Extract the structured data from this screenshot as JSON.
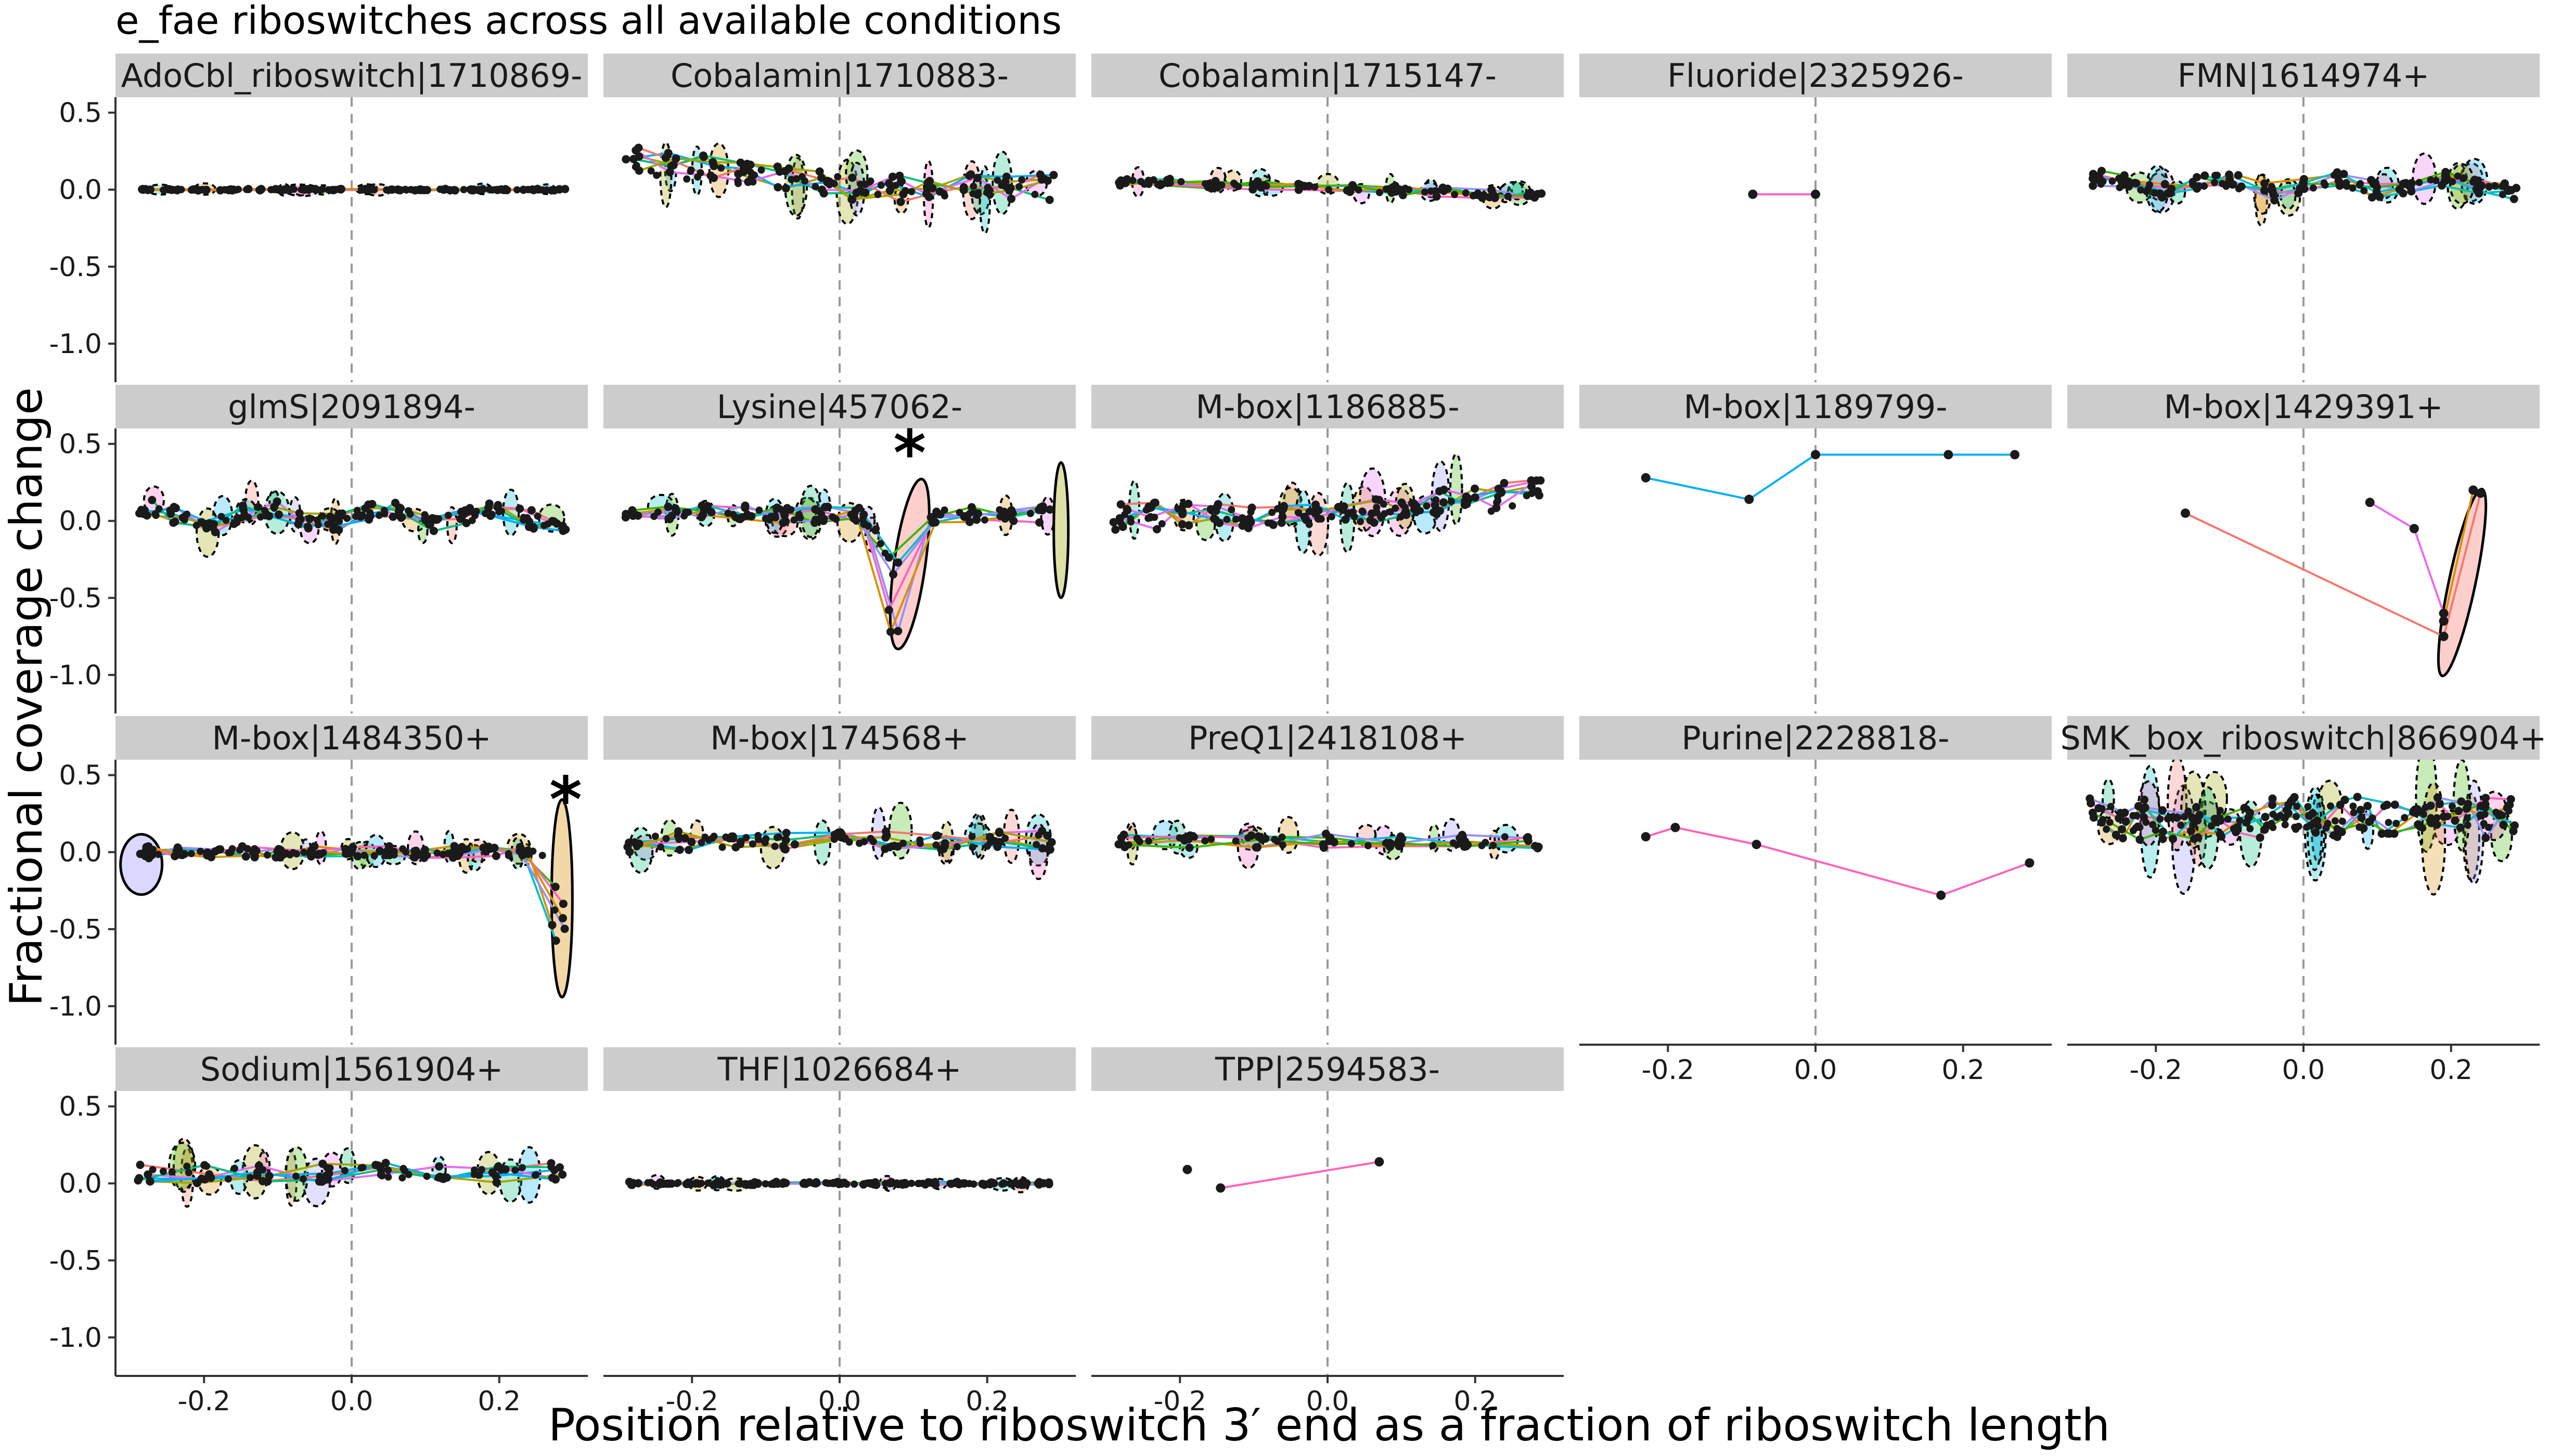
{
  "chart_data": {
    "type": "scatter",
    "title": "e_fae riboswitches across all available conditions",
    "xlabel": "Position relative to riboswitch 3′ end as a fraction of riboswitch length",
    "ylabel": "Fractional coverage change",
    "xlim": [
      -0.32,
      0.32
    ],
    "ylim": [
      -1.25,
      0.6
    ],
    "x_ticks": [
      "-0.2",
      "0.0",
      "0.2"
    ],
    "x_tick_values": [
      -0.2,
      0.0,
      0.2
    ],
    "y_ticks": [
      "0.5",
      "0.0",
      "-0.5",
      "-1.0"
    ],
    "y_tick_values": [
      0.5,
      0.0,
      -0.5,
      -1.0
    ],
    "reference_line_x": 0.0,
    "grid": false,
    "legend": "none",
    "facet_layout": {
      "rows": 4,
      "cols": 5
    },
    "palette": [
      "#F8766D",
      "#D89000",
      "#A3A500",
      "#39B600",
      "#00BF7D",
      "#00BFC4",
      "#00B0F6",
      "#9590FF",
      "#E76BF3",
      "#FF62BC"
    ],
    "panels": [
      {
        "label": "AdoCbl_riboswitch|1710869-",
        "pattern": "flat",
        "amplitude": 0.01,
        "density": 95,
        "seed": 1
      },
      {
        "label": "Cobalamin|1710883-",
        "pattern": "decay",
        "amplitude": 0.18,
        "density": 70,
        "seed": 2
      },
      {
        "label": "Cobalamin|1715147-",
        "pattern": "slope",
        "amplitude": 0.06,
        "density": 60,
        "seed": 3
      },
      {
        "label": "Fluoride|2325926-",
        "pattern": "explicit",
        "series": [
          {
            "color": "#FF62BC",
            "points": [
              [
                -0.085,
                -0.03
              ],
              [
                0.0,
                -0.03
              ]
            ]
          }
        ]
      },
      {
        "label": "FMN|1614974+",
        "pattern": "bumpy",
        "amplitude": 0.12,
        "density": 75,
        "seed": 5
      },
      {
        "label": "glmS|2091894-",
        "pattern": "bumpy",
        "amplitude": 0.12,
        "density": 85,
        "seed": 6
      },
      {
        "label": "Lysine|457062-",
        "pattern": "dip",
        "amplitude": 0.12,
        "density": 70,
        "seed": 7,
        "dip_x": 0.08,
        "dip_y": -0.72,
        "star_x": 0.095,
        "star_y": 0.3
      },
      {
        "label": "M-box|1186885-",
        "pattern": "rising",
        "amplitude": 0.18,
        "density": 85,
        "seed": 8
      },
      {
        "label": "M-box|1189799-",
        "pattern": "explicit",
        "series": [
          {
            "color": "#00B0F6",
            "points": [
              [
                -0.23,
                0.28
              ],
              [
                -0.09,
                0.14
              ],
              [
                0.0,
                0.43
              ],
              [
                0.18,
                0.43
              ],
              [
                0.27,
                0.43
              ]
            ]
          }
        ]
      },
      {
        "label": "M-box|1429391+",
        "pattern": "explicit",
        "series": [
          {
            "color": "#F8766D",
            "points": [
              [
                -0.16,
                0.05
              ],
              [
                0.19,
                -0.75
              ],
              [
                0.24,
                0.18
              ]
            ]
          },
          {
            "color": "#E76BF3",
            "points": [
              [
                0.09,
                0.12
              ],
              [
                0.15,
                -0.05
              ],
              [
                0.19,
                -0.6
              ]
            ]
          },
          {
            "color": "#D89000",
            "points": [
              [
                0.23,
                0.2
              ],
              [
                0.19,
                -0.65
              ]
            ]
          }
        ],
        "ellipses": [
          {
            "cx": 0.215,
            "cy": -0.4,
            "rx": 0.018,
            "ry": 0.62,
            "rot": 12,
            "color": "#F8766D",
            "solid": true
          }
        ]
      },
      {
        "label": "M-box|1484350+",
        "pattern": "drop",
        "amplitude": 0.08,
        "density": 80,
        "seed": 11,
        "drop_y": -0.65,
        "star_x": 0.29,
        "star_y": 0.2
      },
      {
        "label": "M-box|174568+",
        "pattern": "scattered",
        "amplitude": 0.14,
        "density": 55,
        "seed": 12
      },
      {
        "label": "PreQ1|2418108+",
        "pattern": "scattered",
        "amplitude": 0.1,
        "density": 40,
        "seed": 13
      },
      {
        "label": "Purine|2228818-",
        "pattern": "explicit",
        "series": [
          {
            "color": "#FF62BC",
            "points": [
              [
                -0.23,
                0.1
              ],
              [
                -0.19,
                0.16
              ],
              [
                -0.08,
                0.05
              ],
              [
                0.17,
                -0.28
              ],
              [
                0.29,
                -0.07
              ]
            ]
          }
        ]
      },
      {
        "label": "SMK_box_riboswitch|866904+",
        "pattern": "dense",
        "amplitude": 0.28,
        "density": 110,
        "seed": 15
      },
      {
        "label": "Sodium|1561904+",
        "pattern": "scattered",
        "amplitude": 0.14,
        "density": 45,
        "seed": 16
      },
      {
        "label": "THF|1026684+",
        "pattern": "flat",
        "amplitude": 0.02,
        "density": 90,
        "seed": 17
      },
      {
        "label": "TPP|2594583-",
        "pattern": "explicit",
        "series": [
          {
            "color": "#FF62BC",
            "points": [
              [
                -0.145,
                -0.03
              ],
              [
                0.07,
                0.14
              ]
            ]
          }
        ],
        "points_extra": [
          [
            -0.19,
            0.09
          ]
        ]
      }
    ]
  }
}
